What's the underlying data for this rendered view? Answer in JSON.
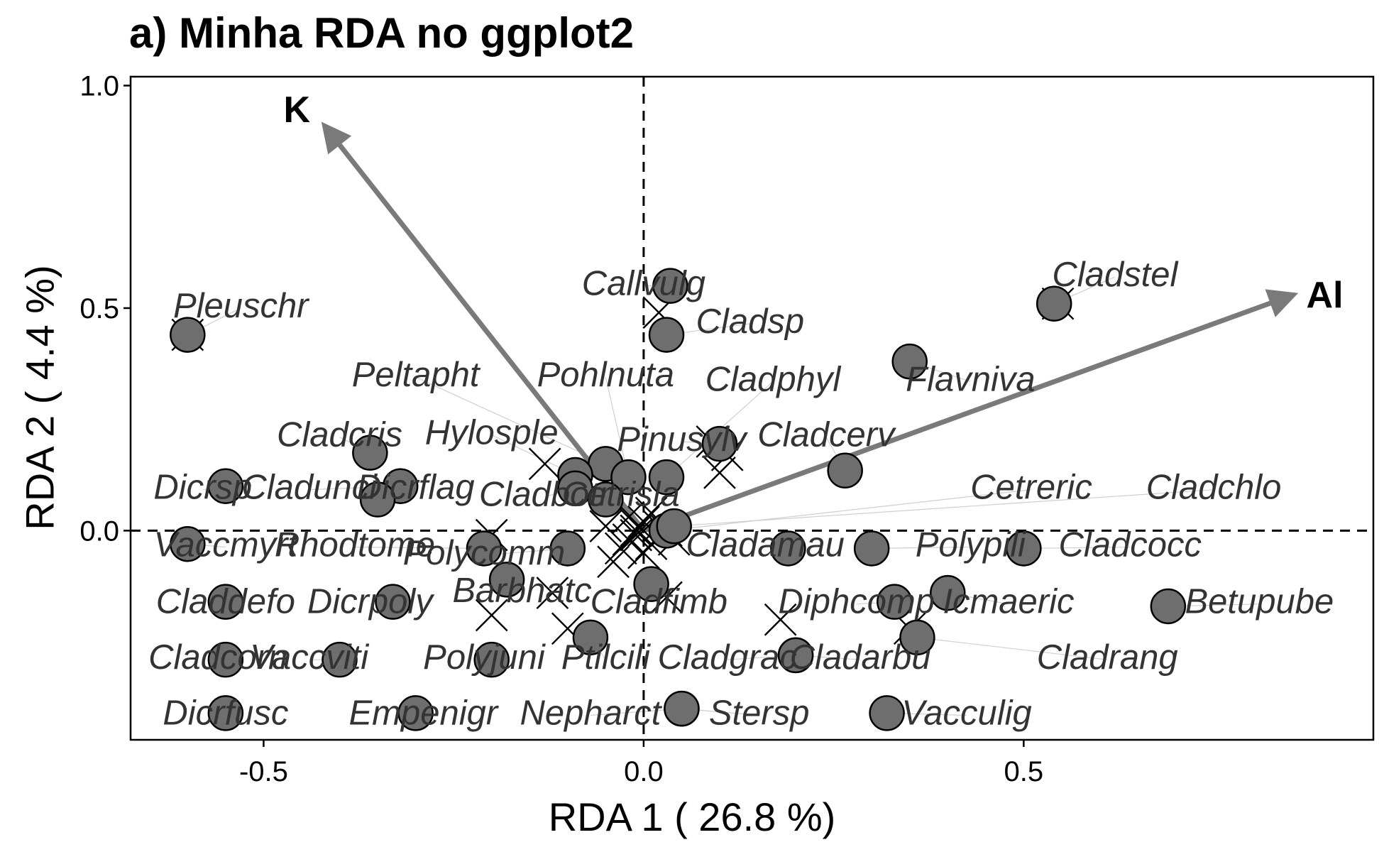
{
  "title": "a) Minha RDA no ggplot2",
  "colors": {
    "arrow": "#7a7a7a",
    "point_fill": "#6e6e6e",
    "point_stroke": "#000000",
    "label_text": "#333333",
    "connector": "#cfcfcf",
    "site_marker": "#000000"
  },
  "chart_data": {
    "type": "scatter",
    "title": "a) Minha RDA no ggplot2",
    "xlabel": "RDA 1  ( 26.8 %)",
    "ylabel": "RDA 2  ( 4.4 %)",
    "xlim": [
      -0.675,
      0.96
    ],
    "ylim": [
      -0.47,
      1.02
    ],
    "xticks": [
      {
        "value": -0.5,
        "label": "-0.5"
      },
      {
        "value": 0.0,
        "label": "0.0"
      },
      {
        "value": 0.5,
        "label": "0.5"
      }
    ],
    "yticks": [
      {
        "value": 0.0,
        "label": "0.0"
      },
      {
        "value": 0.5,
        "label": "0.5"
      },
      {
        "value": 1.0,
        "label": "1.0"
      }
    ],
    "grid": false,
    "reference_lines": {
      "x": 0,
      "y": 0,
      "style": "dashed"
    },
    "env_arrows": [
      {
        "name": "K",
        "x": -0.42,
        "y": 0.91
      },
      {
        "name": "Al",
        "x": 0.855,
        "y": 0.53
      }
    ],
    "sites": [
      {
        "x": -0.6,
        "y": 0.44
      },
      {
        "x": 0.02,
        "y": 0.49
      },
      {
        "x": 0.545,
        "y": 0.51
      },
      {
        "x": 0.11,
        "y": 0.17
      },
      {
        "x": 0.09,
        "y": 0.2
      },
      {
        "x": -0.13,
        "y": 0.15
      },
      {
        "x": -0.2,
        "y": -0.01
      },
      {
        "x": -0.2,
        "y": -0.19
      },
      {
        "x": -0.12,
        "y": -0.14
      },
      {
        "x": -0.1,
        "y": -0.22
      },
      {
        "x": 0.03,
        "y": -0.15
      },
      {
        "x": 0.18,
        "y": -0.2
      },
      {
        "x": 0.35,
        "y": -0.22
      },
      {
        "x": 0.1,
        "y": 0.13
      },
      {
        "x": -0.04,
        "y": 0.07
      },
      {
        "x": -0.02,
        "y": 0.03
      },
      {
        "x": -0.01,
        "y": -0.01
      },
      {
        "x": 0.0,
        "y": 0.02
      },
      {
        "x": 0.01,
        "y": -0.03
      },
      {
        "x": -0.03,
        "y": -0.04
      },
      {
        "x": 0.02,
        "y": 0.01
      },
      {
        "x": -0.02,
        "y": -0.02
      },
      {
        "x": 0.0,
        "y": -0.05
      },
      {
        "x": 0.03,
        "y": 0.0
      },
      {
        "x": -0.05,
        "y": 0.01
      },
      {
        "x": 0.01,
        "y": 0.04
      },
      {
        "x": -0.01,
        "y": 0.0
      },
      {
        "x": 0.04,
        "y": -0.02
      },
      {
        "x": -0.04,
        "y": -0.07
      },
      {
        "x": 0.0,
        "y": 0.0
      }
    ],
    "species": [
      {
        "name": "Callvulg",
        "x": 0.035,
        "y": 0.55,
        "lx": 0.0,
        "ly": 0.55
      },
      {
        "name": "Cladsp",
        "x": 0.03,
        "y": 0.44,
        "lx": 0.14,
        "ly": 0.465
      },
      {
        "name": "Cladstel",
        "x": 0.54,
        "y": 0.51,
        "lx": 0.62,
        "ly": 0.57
      },
      {
        "name": "Pleuschr",
        "x": -0.6,
        "y": 0.44,
        "lx": -0.53,
        "ly": 0.5
      },
      {
        "name": "Peltapht",
        "x": -0.05,
        "y": 0.15,
        "lx": -0.3,
        "ly": 0.345
      },
      {
        "name": "Pohlnuta",
        "x": -0.02,
        "y": 0.12,
        "lx": -0.05,
        "ly": 0.345
      },
      {
        "name": "Cladphyl",
        "x": 0.03,
        "y": 0.12,
        "lx": 0.17,
        "ly": 0.335
      },
      {
        "name": "Flavniva",
        "x": 0.35,
        "y": 0.38,
        "lx": 0.43,
        "ly": 0.335
      },
      {
        "name": "Cladcris",
        "x": -0.36,
        "y": 0.175,
        "lx": -0.4,
        "ly": 0.21
      },
      {
        "name": "Hylosple",
        "x": -0.09,
        "y": 0.125,
        "lx": -0.2,
        "ly": 0.215
      },
      {
        "name": "Pinusylv",
        "x": 0.1,
        "y": 0.195,
        "lx": 0.05,
        "ly": 0.2
      },
      {
        "name": "Cladcerv",
        "x": 0.265,
        "y": 0.135,
        "lx": 0.24,
        "ly": 0.21
      },
      {
        "name": "Dicrsp",
        "x": -0.55,
        "y": 0.1,
        "lx": -0.58,
        "ly": 0.092
      },
      {
        "name": "Cladunci",
        "x": -0.32,
        "y": 0.1,
        "lx": -0.44,
        "ly": 0.092
      },
      {
        "name": "Dicrflag",
        "x": -0.35,
        "y": 0.07,
        "lx": -0.3,
        "ly": 0.092
      },
      {
        "name": "Cladbotr",
        "x": -0.09,
        "y": 0.095,
        "lx": -0.13,
        "ly": 0.076
      },
      {
        "name": "Cetrisla",
        "x": -0.05,
        "y": 0.07,
        "lx": -0.03,
        "ly": 0.076
      },
      {
        "name": "Cetreric",
        "x": 0.03,
        "y": 0.0,
        "lx": 0.51,
        "ly": 0.092
      },
      {
        "name": "Cladchlo",
        "x": 0.04,
        "y": 0.01,
        "lx": 0.75,
        "ly": 0.092
      },
      {
        "name": "Vaccmyrt",
        "x": -0.6,
        "y": -0.03,
        "lx": -0.55,
        "ly": -0.037
      },
      {
        "name": "Rhodtome",
        "x": -0.21,
        "y": -0.04,
        "lx": -0.38,
        "ly": -0.037
      },
      {
        "name": "Polycomm",
        "x": -0.1,
        "y": -0.04,
        "lx": -0.21,
        "ly": -0.055
      },
      {
        "name": "Cladamau",
        "x": 0.19,
        "y": -0.04,
        "lx": 0.16,
        "ly": -0.037
      },
      {
        "name": "Polypili",
        "x": 0.3,
        "y": -0.04,
        "lx": 0.43,
        "ly": -0.037
      },
      {
        "name": "Cladcocc",
        "x": 0.5,
        "y": -0.04,
        "lx": 0.64,
        "ly": -0.037
      },
      {
        "name": "Barbhatc",
        "x": -0.18,
        "y": -0.11,
        "lx": -0.16,
        "ly": -0.14
      },
      {
        "name": "Cladfimb",
        "x": 0.01,
        "y": -0.12,
        "lx": 0.02,
        "ly": -0.165
      },
      {
        "name": "Claddefo",
        "x": -0.55,
        "y": -0.16,
        "lx": -0.55,
        "ly": -0.165
      },
      {
        "name": "Dicrpoly",
        "x": -0.33,
        "y": -0.16,
        "lx": -0.36,
        "ly": -0.165
      },
      {
        "name": "Diphcomp",
        "x": 0.33,
        "y": -0.16,
        "lx": 0.28,
        "ly": -0.165
      },
      {
        "name": "Icmaeric",
        "x": 0.4,
        "y": -0.14,
        "lx": 0.48,
        "ly": -0.165
      },
      {
        "name": "Betupube",
        "x": 0.69,
        "y": -0.17,
        "lx": 0.81,
        "ly": -0.165
      },
      {
        "name": "Cladcorn",
        "x": -0.55,
        "y": -0.29,
        "lx": -0.56,
        "ly": -0.29
      },
      {
        "name": "Vaccviti",
        "x": -0.4,
        "y": -0.29,
        "lx": -0.44,
        "ly": -0.29
      },
      {
        "name": "Polyjuni",
        "x": -0.2,
        "y": -0.29,
        "lx": -0.21,
        "ly": -0.29
      },
      {
        "name": "Ptilcili",
        "x": -0.07,
        "y": -0.24,
        "lx": -0.05,
        "ly": -0.29
      },
      {
        "name": "Cladgrac",
        "x": 0.2,
        "y": -0.28,
        "lx": 0.11,
        "ly": -0.29
      },
      {
        "name": "Cladarbu",
        "x": 0.2,
        "y": -0.28,
        "lx": 0.285,
        "ly": -0.29
      },
      {
        "name": "Cladrang",
        "x": 0.36,
        "y": -0.24,
        "lx": 0.61,
        "ly": -0.29
      },
      {
        "name": "Dicrfusc",
        "x": -0.55,
        "y": -0.41,
        "lx": -0.55,
        "ly": -0.415
      },
      {
        "name": "Empenigr",
        "x": -0.3,
        "y": -0.41,
        "lx": -0.29,
        "ly": -0.415
      },
      {
        "name": "Nepharct",
        "x": 0.05,
        "y": -0.4,
        "lx": -0.07,
        "ly": -0.415
      },
      {
        "name": "Stersp",
        "x": 0.05,
        "y": -0.4,
        "lx": 0.152,
        "ly": -0.415
      },
      {
        "name": "Vacculig",
        "x": 0.32,
        "y": -0.41,
        "lx": 0.425,
        "ly": -0.415
      }
    ]
  }
}
